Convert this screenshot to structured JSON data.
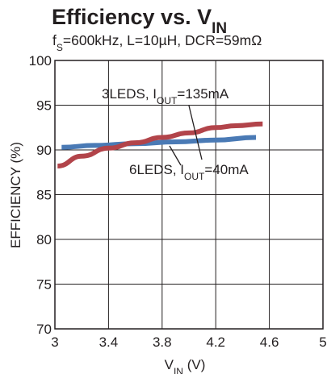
{
  "chart_data": {
    "type": "line",
    "title": "Efficiency vs. V",
    "title_sub": "IN",
    "subtitle": {
      "f_main": "f",
      "f_sub": "S",
      "rest": "=600kHz, L=10µH, DCR=59mΩ"
    },
    "xlabel": {
      "main": "V",
      "sub": "IN",
      "unit": " (V)"
    },
    "ylabel": "EFFICIENCY (%)",
    "xlim": [
      3,
      5
    ],
    "ylim": [
      70,
      100
    ],
    "x_ticks": [
      3,
      3.4,
      3.8,
      4.2,
      4.6,
      5
    ],
    "x_tick_labels": [
      "3",
      "3.4",
      "3.8",
      "4.2",
      "4.6",
      "5"
    ],
    "y_ticks": [
      70,
      75,
      80,
      85,
      90,
      95,
      100
    ],
    "y_tick_labels": [
      "70",
      "75",
      "80",
      "85",
      "90",
      "95",
      "100"
    ],
    "grid": true,
    "legend": "none",
    "series": [
      {
        "color": "#4a7ab5",
        "x": [
          3.05,
          3.3,
          3.6,
          3.9,
          4.2,
          4.5
        ],
        "y": [
          90.3,
          90.5,
          90.7,
          90.9,
          91.1,
          91.4
        ]
      },
      {
        "color": "#b2444a",
        "x": [
          3.02,
          3.2,
          3.4,
          3.6,
          3.8,
          4.0,
          4.2,
          4.35,
          4.55
        ],
        "y": [
          88.2,
          89.3,
          90.2,
          90.8,
          91.4,
          91.9,
          92.5,
          92.7,
          92.9
        ]
      }
    ],
    "annotations": [
      {
        "main": "3LEDS, I",
        "sub": "OUT",
        "rest": "=135mA"
      },
      {
        "main": "6LEDS, I",
        "sub": "OUT",
        "rest": "=40mA"
      }
    ]
  }
}
